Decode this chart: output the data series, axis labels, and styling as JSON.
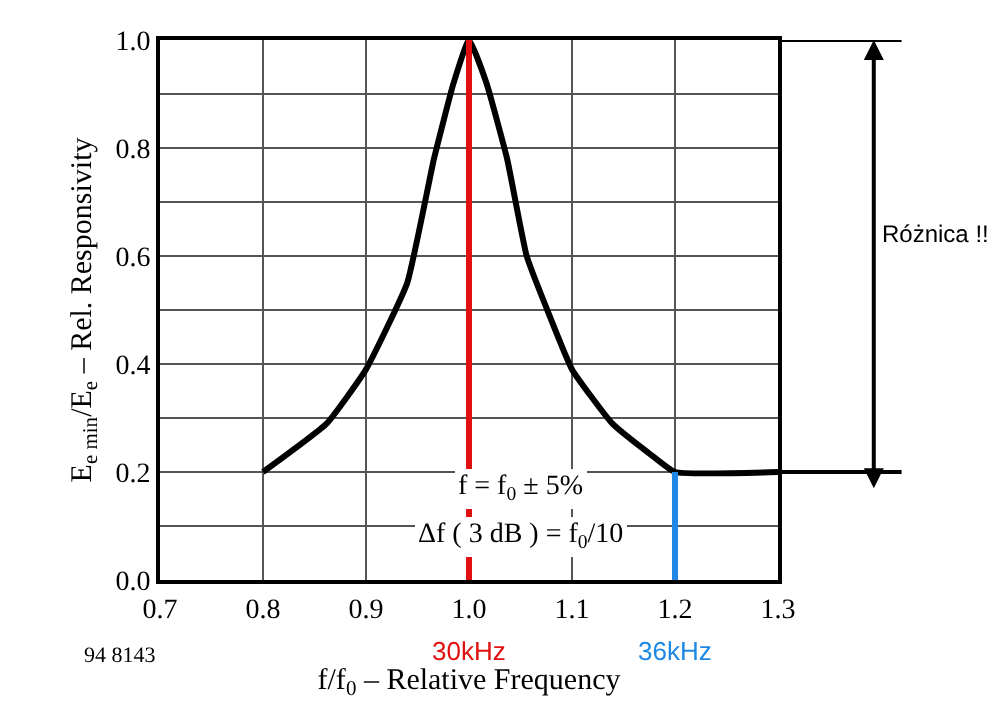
{
  "chart_data": {
    "type": "line",
    "xlabel": "f/f$_{0}$ – Relative Frequency",
    "ylabel": "E$_{e min}$/E$_{e}$ – Rel. Responsivity",
    "xlim": [
      0.7,
      1.3
    ],
    "xticks": [
      0.7,
      0.8,
      0.9,
      {
        "value": 1,
        "label": "1.0"
      },
      1.1,
      1.2,
      1.3
    ],
    "ylim": [
      0,
      1.0
    ],
    "yticks": [
      {
        "value": 0,
        "label": "0.0"
      },
      {
        "value": 0.1,
        "label": null
      },
      0.2,
      {
        "value": 0.3,
        "label": null
      },
      0.4,
      {
        "value": 0.5,
        "label": null
      },
      0.6,
      {
        "value": 0.7,
        "label": null
      },
      0.8,
      {
        "value": 0.9,
        "label": null
      },
      {
        "value": 1,
        "label": "1.0"
      }
    ],
    "grid": true,
    "marker": "none",
    "line_style": "solid",
    "series": [
      {
        "color": "#000000",
        "x": [
          0.8,
          0.862,
          0.9,
          0.94,
          0.966,
          0.985,
          1.0,
          1.017,
          1.037,
          1.056,
          1.076,
          1.1,
          1.139,
          1.178,
          1.2,
          1.3
        ],
        "values": [
          0.2,
          0.29,
          0.39,
          0.55,
          0.78,
          0.92,
          1.0,
          0.92,
          0.78,
          0.6,
          0.5,
          0.39,
          0.29,
          0.23,
          0.2,
          0.2
        ]
      },
      {
        "color": "#1e88e5",
        "x": [
          1.2,
          1.2
        ],
        "values": [
          0,
          0.2
        ]
      }
    ],
    "ref_lines": [
      {
        "axis": "x",
        "value": 1.0,
        "label": "30kHz",
        "color": "#e01010"
      }
    ],
    "annotations": [
      "f = f$_{0}$ ± 5%",
      "Δf ( 3 dB ) = f$_{0}$/10",
      {
        "text": "36kHz",
        "x": 1.2,
        "y": 0
      },
      "Różnica !!",
      "94 8143"
    ]
  }
}
